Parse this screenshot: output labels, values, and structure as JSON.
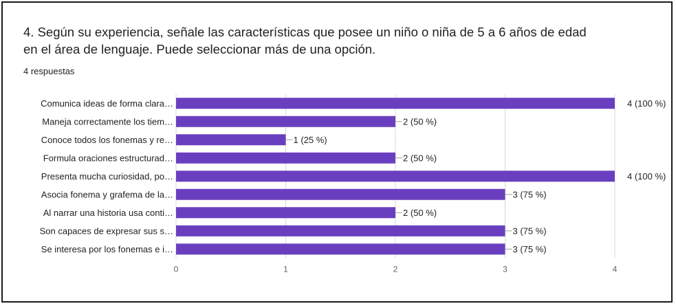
{
  "question": {
    "line1": "4. Según su experiencia, señale las características que posee un niño o niña de 5 a 6 años de edad",
    "line2": "en el área de lenguaje.  Puede seleccionar más de una opción.",
    "responses": "4 respuestas"
  },
  "colors": {
    "bar": "#6a3fbf",
    "grid": "#d9d9d9",
    "connector": "#9e9e9e"
  },
  "chart_data": {
    "type": "bar",
    "orientation": "horizontal",
    "categories": [
      "Comunica ideas de forma clara…",
      "Maneja correctamente los tiem…",
      "Conoce todos los fonemas y re…",
      "Formula oraciones estructurad…",
      "Presenta mucha curiosidad, po…",
      "Asocia fonema y grafema de la…",
      "Al narrar una historia usa conti…",
      "Son capaces de expresar sus s…",
      "Se interesa por los fonemas e i…"
    ],
    "values": [
      4,
      2,
      1,
      2,
      4,
      3,
      2,
      3,
      3
    ],
    "labels": [
      "4 (100 %)",
      "2 (50 %)",
      "1 (25 %)",
      "2 (50 %)",
      "4 (100 %)",
      "3 (75 %)",
      "2 (50 %)",
      "3 (75 %)",
      "3 (75 %)"
    ],
    "xlim": [
      0,
      4
    ],
    "xticks": [
      "0",
      "1",
      "2",
      "3",
      "4"
    ],
    "grid": true
  }
}
